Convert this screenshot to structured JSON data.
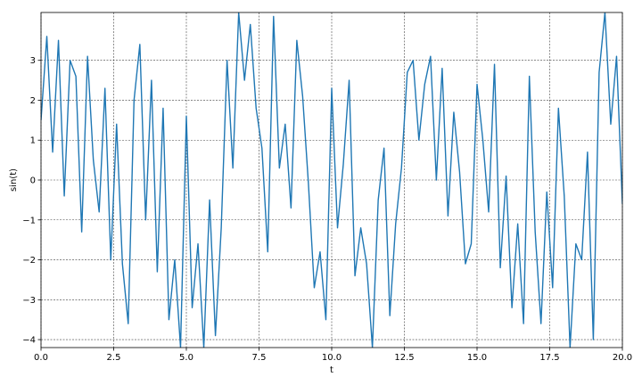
{
  "chart_data": {
    "type": "line",
    "title": "",
    "xlabel": "t",
    "ylabel": "sin(t)",
    "xlim": [
      0.0,
      20.0
    ],
    "ylim": [
      -4.2,
      4.2
    ],
    "xticks": [
      0.0,
      2.5,
      5.0,
      7.5,
      10.0,
      12.5,
      15.0,
      17.5,
      20.0
    ],
    "xtick_labels": [
      "0.0",
      "2.5",
      "5.0",
      "7.5",
      "10.0",
      "12.5",
      "15.0",
      "17.5",
      "20.0"
    ],
    "yticks": [
      3,
      2,
      1,
      0,
      -1,
      -2,
      -3,
      -4
    ],
    "ytick_labels": [
      "3",
      "2",
      "1",
      "0",
      "−1",
      "−2",
      "−3",
      "−4"
    ],
    "grid": true,
    "legend": "none",
    "series": [
      {
        "color": "#1f77b4",
        "x": [
          0.0,
          0.2,
          0.4,
          0.6,
          0.8,
          1.0,
          1.2,
          1.4,
          1.6,
          1.8,
          2.0,
          2.2,
          2.4,
          2.6,
          2.8,
          3.0,
          3.2,
          3.4,
          3.6,
          3.8,
          4.0,
          4.2,
          4.4,
          4.6,
          4.8,
          5.0,
          5.2,
          5.4,
          5.6,
          5.8,
          6.0,
          6.2,
          6.4,
          6.6,
          6.8,
          7.0,
          7.2,
          7.4,
          7.6,
          7.8,
          8.0,
          8.2,
          8.4,
          8.6,
          8.8,
          9.0,
          9.2,
          9.4,
          9.6,
          9.8,
          10.0,
          10.2,
          10.4,
          10.6,
          10.8,
          11.0,
          11.2,
          11.4,
          11.6,
          11.8,
          12.0,
          12.2,
          12.4,
          12.6,
          12.8,
          13.0,
          13.2,
          13.4,
          13.6,
          13.8,
          14.0,
          14.2,
          14.4,
          14.6,
          14.8,
          15.0,
          15.2,
          15.4,
          15.6,
          15.8,
          16.0,
          16.2,
          16.4,
          16.6,
          16.8,
          17.0,
          17.2,
          17.4,
          17.6,
          17.8,
          18.0,
          18.2,
          18.4,
          18.6,
          18.8,
          19.0,
          19.2,
          19.4,
          19.6,
          19.8,
          20.0
        ],
        "y": [
          1.5,
          3.6,
          0.7,
          3.5,
          -0.4,
          3.0,
          2.6,
          -1.3,
          3.1,
          0.5,
          -0.8,
          2.3,
          -2.0,
          1.4,
          -2.1,
          -3.6,
          2.0,
          3.4,
          -1.0,
          2.5,
          -2.3,
          1.8,
          -3.5,
          -2.0,
          -4.2,
          1.6,
          -3.2,
          -1.6,
          -4.2,
          -0.5,
          -3.9,
          -1.2,
          3.0,
          0.3,
          4.2,
          2.5,
          3.9,
          1.8,
          0.8,
          -1.8,
          4.1,
          0.3,
          1.4,
          -0.7,
          3.5,
          2.1,
          -0.1,
          -2.7,
          -1.8,
          -3.5,
          2.3,
          -1.2,
          0.4,
          2.5,
          -2.4,
          -1.2,
          -2.1,
          -4.2,
          -0.5,
          0.8,
          -3.4,
          -1.1,
          0.3,
          2.7,
          3.0,
          1.0,
          2.4,
          3.1,
          0.0,
          2.8,
          -0.9,
          1.7,
          0.2,
          -2.1,
          -1.6,
          2.4,
          1.0,
          -0.8,
          2.9,
          -2.2,
          0.1,
          -3.2,
          -1.1,
          -3.6,
          2.6,
          -1.3,
          -3.6,
          -0.3,
          -2.7,
          1.8,
          -0.4,
          -4.2,
          -1.6,
          -2.0,
          0.7,
          -4.0,
          2.7,
          4.2,
          1.4,
          3.1,
          -0.6
        ]
      }
    ]
  }
}
